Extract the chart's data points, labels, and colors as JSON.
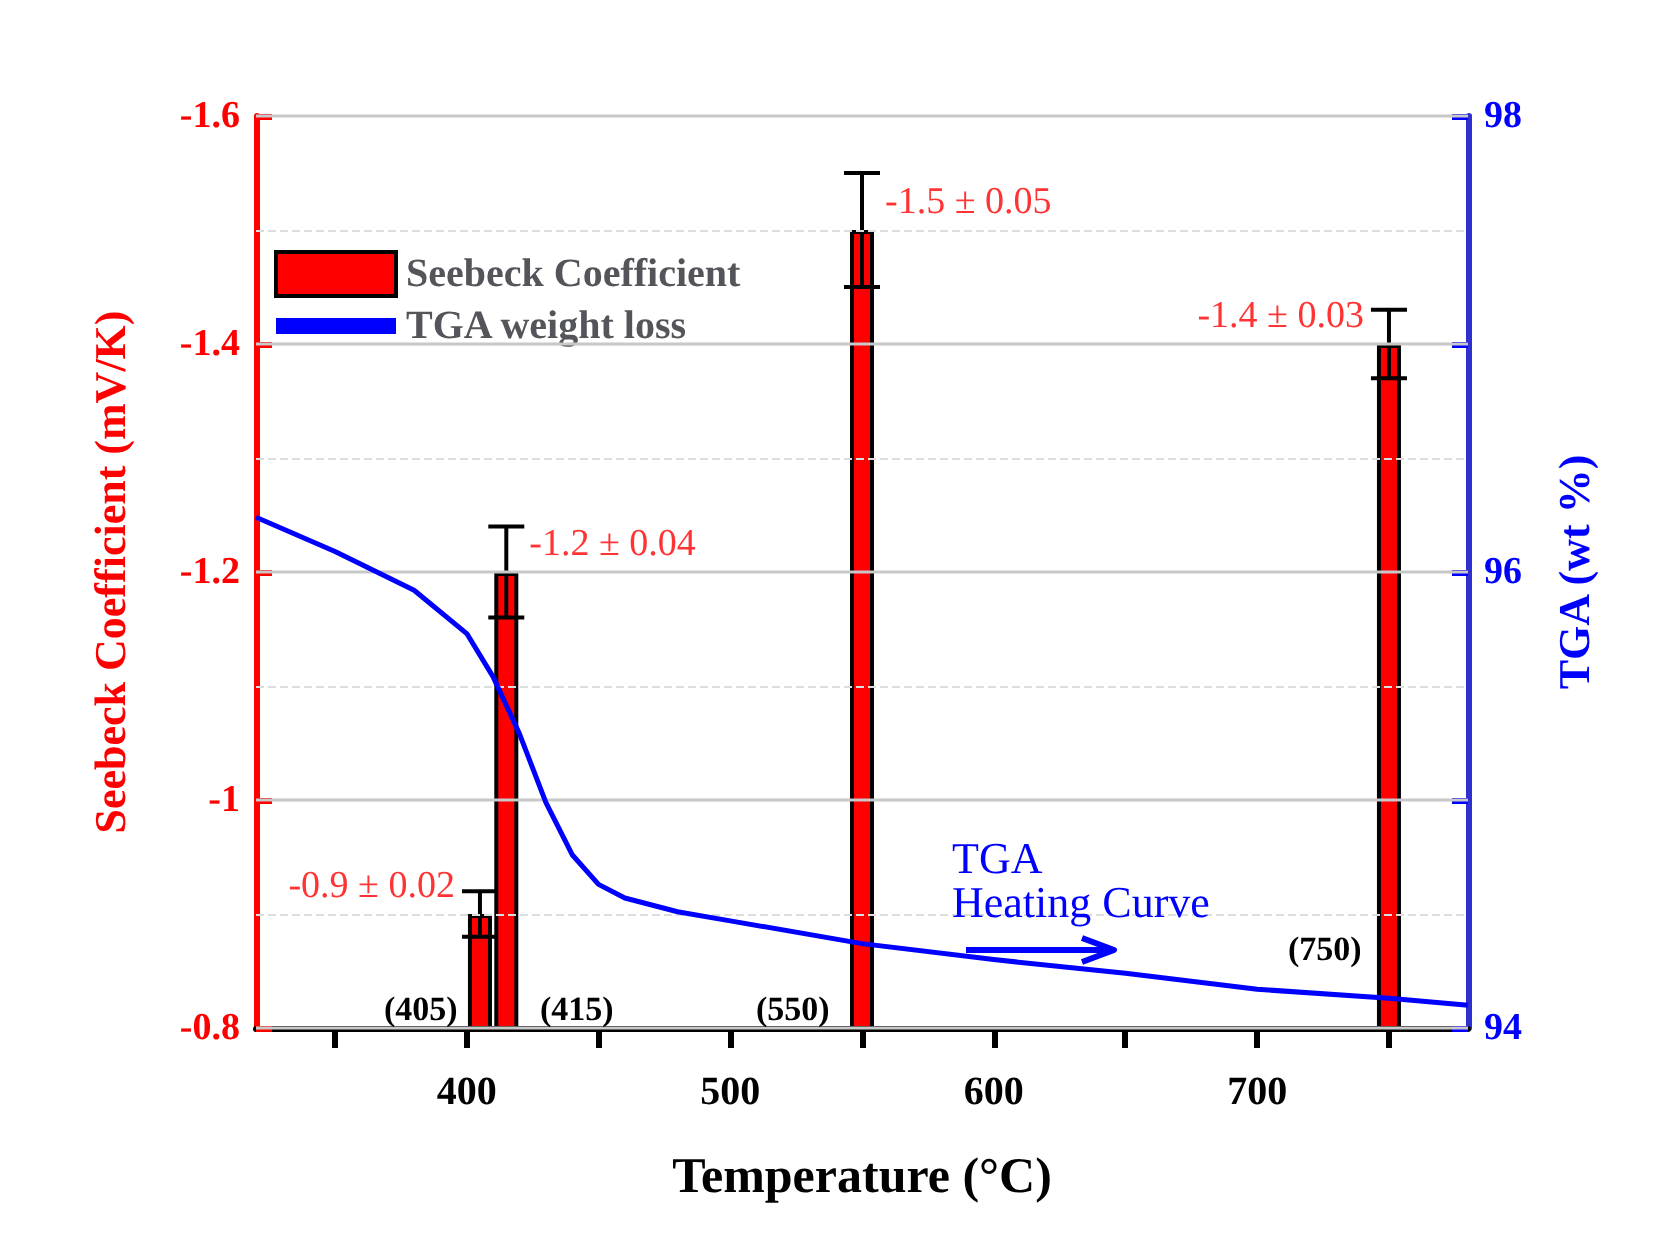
{
  "chart_data": {
    "type": "bar",
    "xlabel": "Temperature (°C)",
    "ylabel": "Seebeck Coefficient (mV/K)",
    "y2label": "TGA (wt %)",
    "xlim": [
      320,
      780
    ],
    "xticks": [
      {
        "value": 350,
        "label": null
      },
      400,
      {
        "value": 450,
        "label": null
      },
      500,
      {
        "value": 550,
        "label": null
      },
      600,
      {
        "value": 650,
        "label": null
      },
      700,
      {
        "value": 750,
        "label": null
      }
    ],
    "ylim": [
      -0.8,
      -1.6
    ],
    "yticks": [
      -0.8,
      -1.0,
      -1.2,
      -1.4,
      -1.6
    ],
    "y2lim": [
      94,
      98
    ],
    "y2ticks": [
      94,
      {
        "value": 95,
        "label": null
      },
      96,
      {
        "value": 97,
        "label": null
      },
      98
    ],
    "grid": "y",
    "legend": "top left",
    "series": [
      {
        "name": "Seebeck Coefficient",
        "color": "#ff0000",
        "x": [
          405,
          415,
          550,
          750
        ],
        "values": [
          -0.9,
          -1.2,
          -1.5,
          -1.4
        ],
        "errors": [
          0.02,
          0.04,
          0.05,
          0.03
        ]
      },
      {
        "name": "TGA weight loss",
        "type": "line",
        "axis": "y2",
        "color": "#0000ff",
        "marker": "none",
        "x": [
          320,
          350,
          380,
          400,
          410,
          420,
          430,
          440,
          450,
          460,
          480,
          500,
          550,
          600,
          650,
          700,
          750,
          780
        ],
        "values": [
          96.24,
          96.09,
          95.92,
          95.73,
          95.54,
          95.29,
          94.99,
          94.76,
          94.63,
          94.57,
          94.51,
          94.47,
          94.37,
          94.3,
          94.24,
          94.17,
          94.13,
          94.1
        ]
      }
    ],
    "annotations": [
      {
        "text": "-0.9 ± 0.02",
        "x": 405,
        "y": -0.9
      },
      {
        "text": "-1.2 ± 0.04",
        "x": 415,
        "y": -1.2
      },
      {
        "text": "-1.5 ± 0.05",
        "x": 550,
        "y": -1.5
      },
      {
        "text": "-1.4 ± 0.03",
        "x": 750,
        "y": -1.4
      },
      "(405)",
      "(415)",
      "(550)",
      "(750)",
      "TGA\nHeating Curve"
    ]
  }
}
